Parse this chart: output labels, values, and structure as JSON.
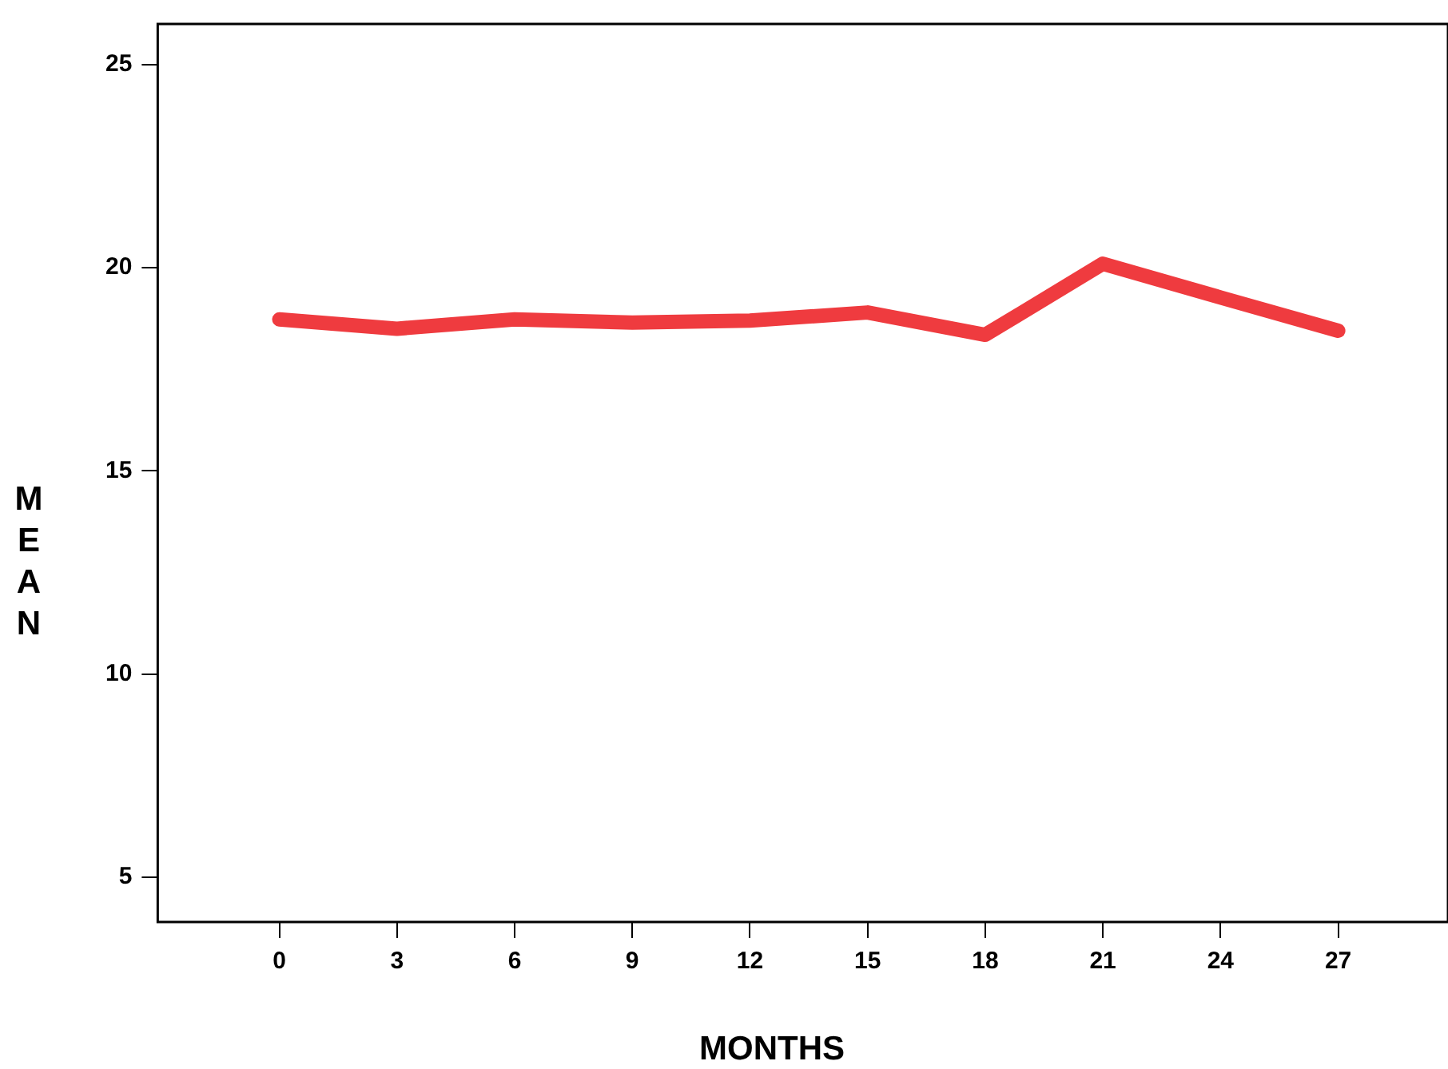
{
  "chart_data": {
    "type": "line",
    "xlabel": "MONTHS",
    "ylabel": "MEAN",
    "x": [
      0,
      3,
      6,
      9,
      12,
      15,
      18,
      21,
      24,
      27
    ],
    "series": [
      {
        "color": "#ef3b3f",
        "values": [
          18.73,
          18.5,
          18.73,
          18.65,
          18.7,
          18.9,
          18.35,
          20.1,
          19.27,
          18.45
        ]
      }
    ],
    "xlim": [
      -3.1,
      29.8
    ],
    "xticks": [
      0,
      3,
      6,
      9,
      12,
      15,
      18,
      21,
      24,
      27
    ],
    "ylim": [
      3.9,
      26
    ],
    "yticks": [
      5,
      10,
      15,
      20,
      25
    ],
    "grid": false,
    "legend": false,
    "marker": "none",
    "line_style": "solid"
  }
}
